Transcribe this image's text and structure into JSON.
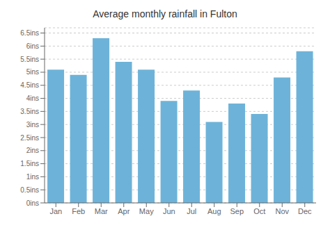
{
  "chart_data": {
    "type": "bar",
    "title": "Average monthly rainfall in Fulton",
    "categories": [
      "Jan",
      "Feb",
      "Mar",
      "Apr",
      "May",
      "Jun",
      "Jul",
      "Aug",
      "Sep",
      "Oct",
      "Nov",
      "Dec"
    ],
    "values": [
      5.1,
      4.9,
      6.3,
      5.4,
      5.1,
      3.9,
      4.3,
      3.1,
      3.8,
      3.4,
      4.8,
      5.8
    ],
    "color": "#6db3d9",
    "ylim": [
      0,
      6.7
    ],
    "yticks": [
      {
        "value": 0,
        "label": "0ins"
      },
      {
        "value": 0.5,
        "label": "0.5ins"
      },
      {
        "value": 1.0,
        "label": "1ins"
      },
      {
        "value": 1.5,
        "label": "1.5ins"
      },
      {
        "value": 2.0,
        "label": "2ins"
      },
      {
        "value": 2.5,
        "label": "2.5ins"
      },
      {
        "value": 3.0,
        "label": "3ins"
      },
      {
        "value": 3.5,
        "label": "3.5ins"
      },
      {
        "value": 4.0,
        "label": "4ins"
      },
      {
        "value": 4.5,
        "label": "4.5ins"
      },
      {
        "value": 5.0,
        "label": "5ins"
      },
      {
        "value": 5.5,
        "label": "5.5ins"
      },
      {
        "value": 6.0,
        "label": "6ins"
      },
      {
        "value": 6.5,
        "label": "6.5ins"
      }
    ],
    "grid": true
  }
}
